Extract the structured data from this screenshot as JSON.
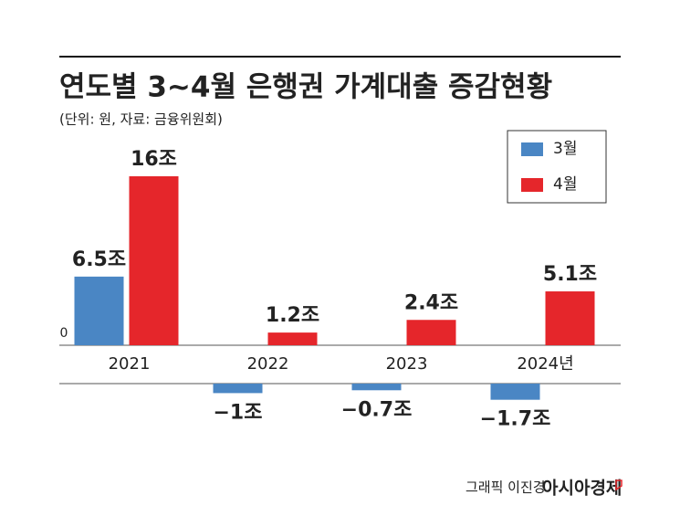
{
  "chart_data": {
    "type": "bar",
    "title": "연도별 3~4월 은행권 가계대출 증감현황",
    "subtitle": "(단위: 원, 자료: 금융위원회)",
    "categories": [
      "2021",
      "2022",
      "2023",
      "2024년"
    ],
    "series": [
      {
        "name": "3월",
        "color": "#4a86c4",
        "values": [
          6.5,
          -1,
          -0.7,
          -1.7
        ],
        "value_labels": [
          "6.5조",
          "−1조",
          "−0.7조",
          "−1.7조"
        ]
      },
      {
        "name": "4월",
        "color": "#e5262b",
        "values": [
          16,
          1.2,
          2.4,
          5.1
        ],
        "value_labels": [
          "16조",
          "1.2조",
          "2.4조",
          "5.1조"
        ]
      }
    ],
    "ylim": [
      -2,
      16
    ],
    "yticks": [
      0
    ],
    "legend": "upper right",
    "source": "그래픽 이진경",
    "publisher": "아시아경제"
  }
}
